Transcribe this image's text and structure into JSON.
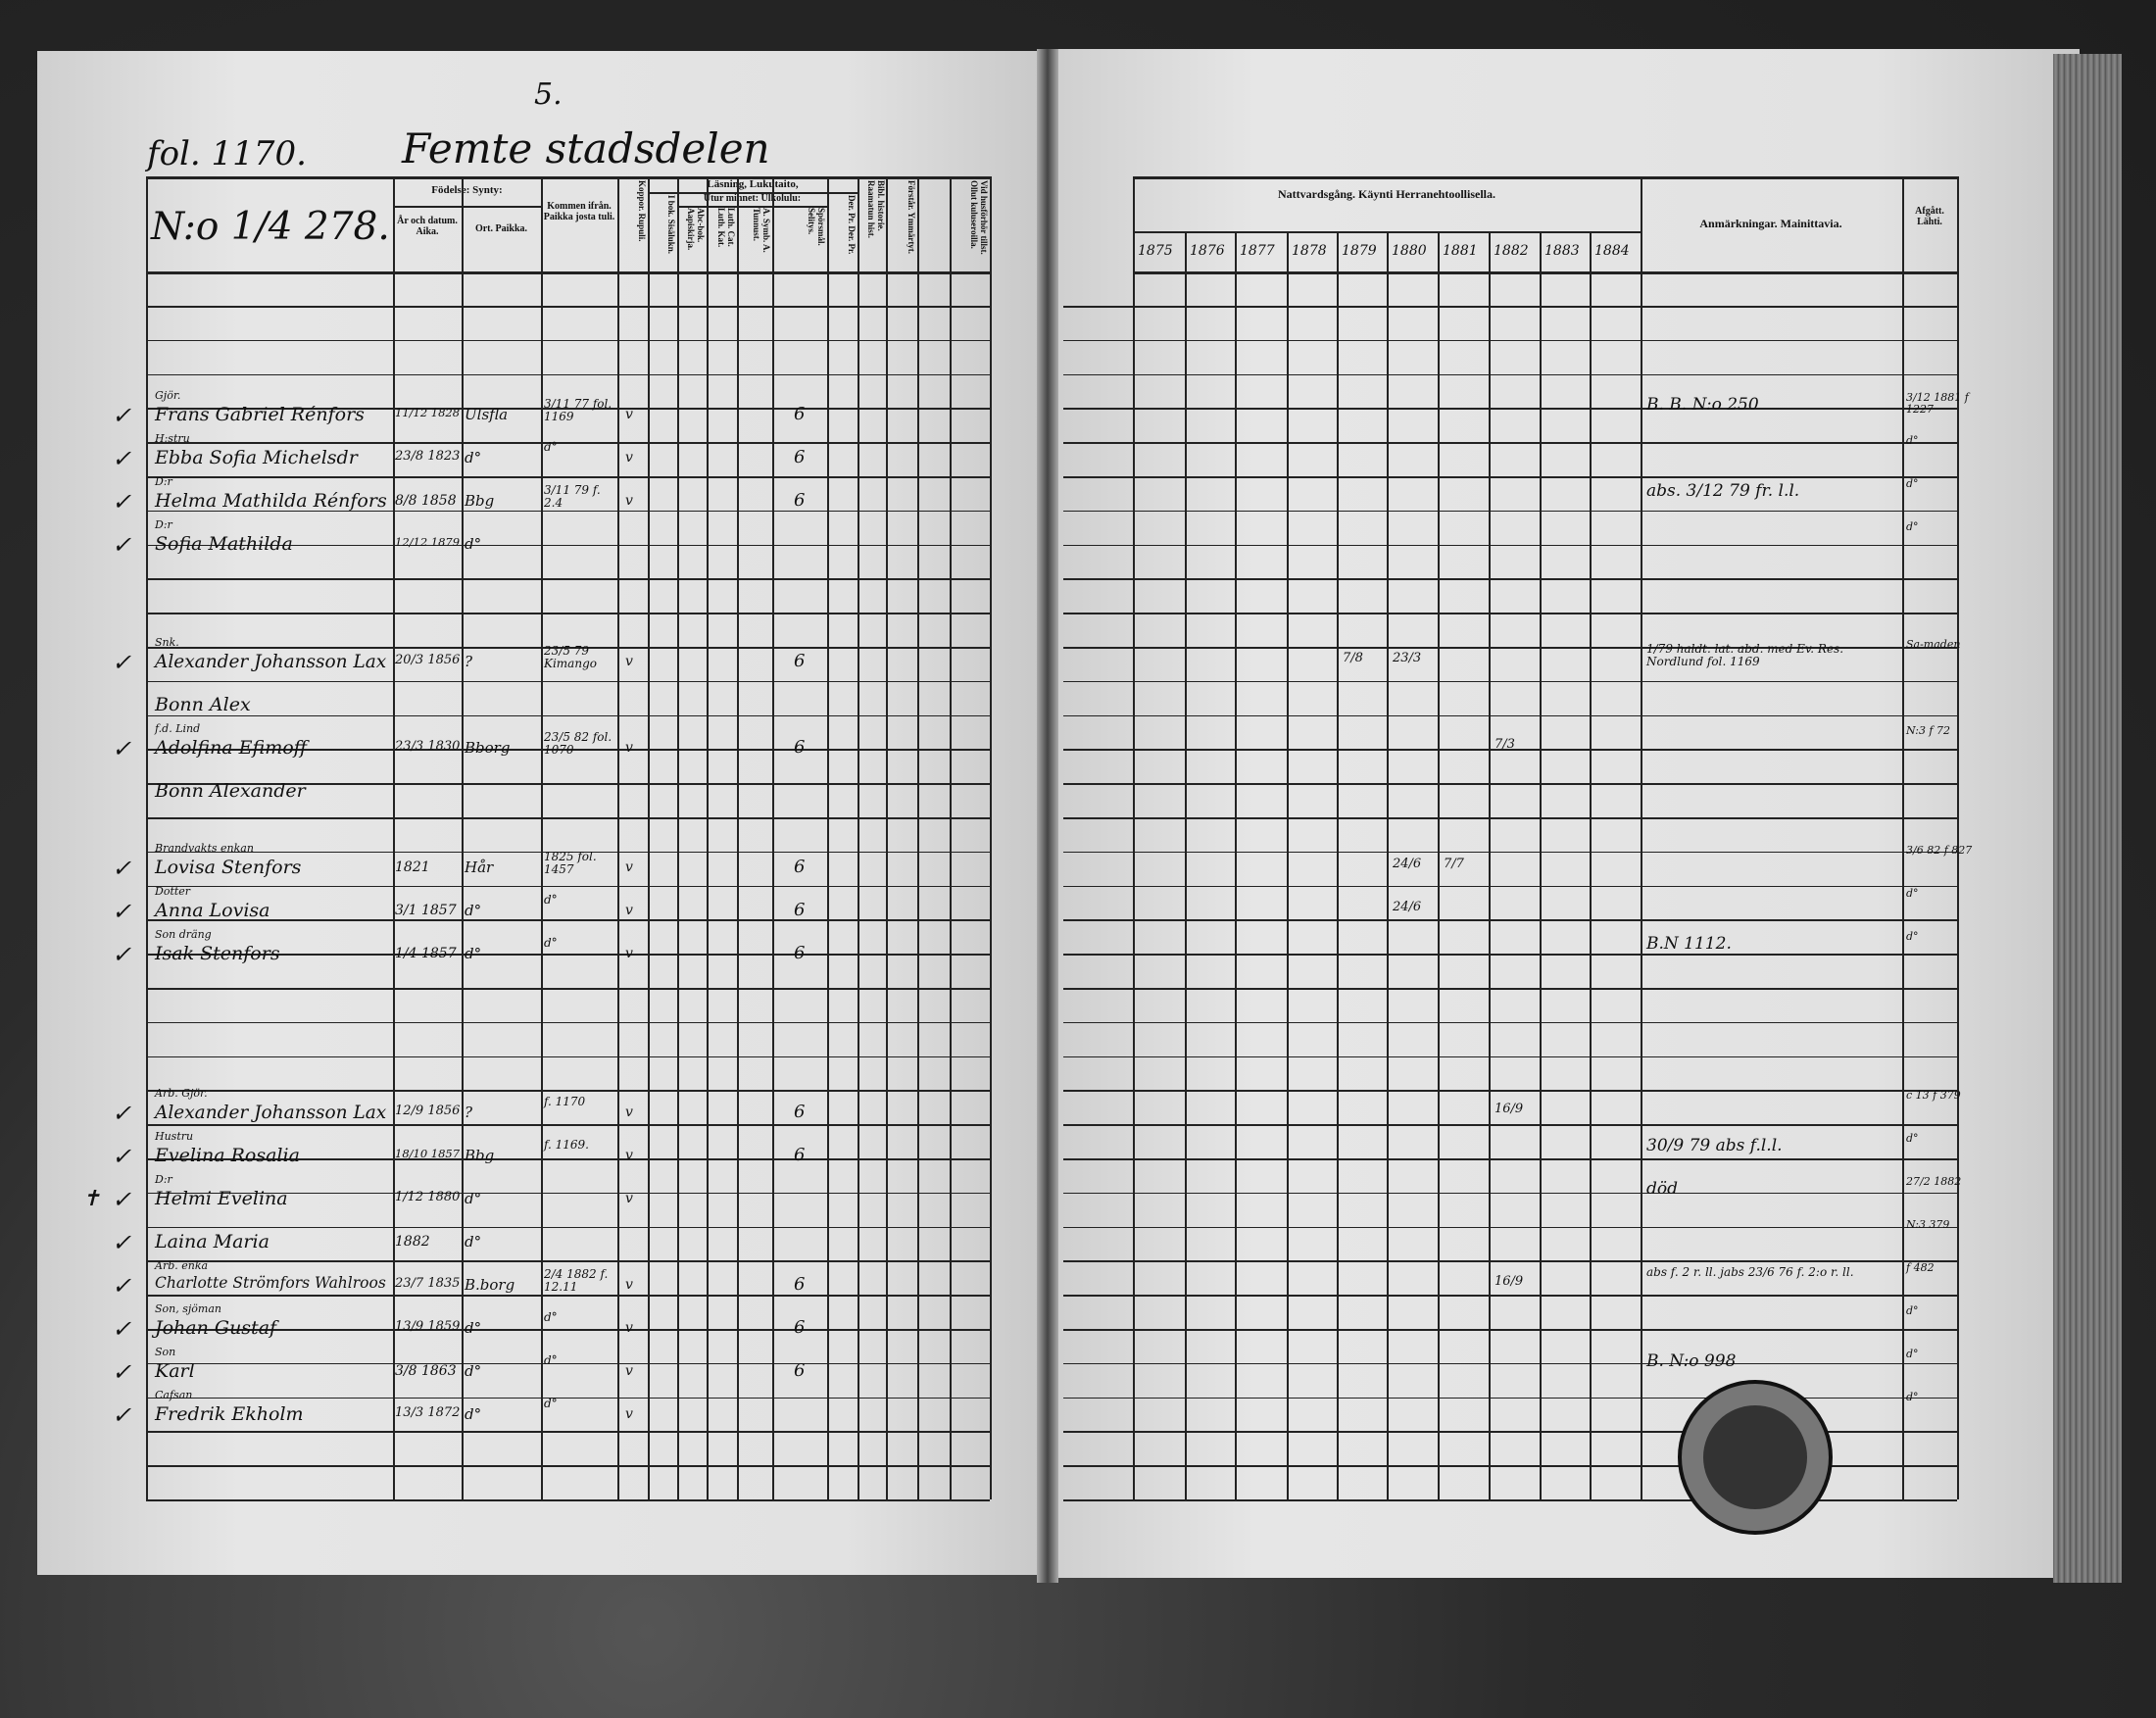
{
  "header": {
    "folio": "fol. 1170.",
    "district": "Femte stadsdelen",
    "district_number": "5.",
    "house_number": "N:o 1/4 278."
  },
  "left_columns": {
    "birth": "Födelse: Synty:",
    "year_date": "År och datum. Aika.",
    "place": "Ort. Paikka.",
    "came_from": "Kommen ifrån. Paikka josta tuli.",
    "smallpox": "Koppor. Rupuli.",
    "reading": "Läsning, Lukutaito,",
    "by_heart": "Utur minnet: Ulkolulu:",
    "in_book": "I bok. Sisälukn.",
    "abc": "Abc-bok. Aapiskirja.",
    "catechism": "Luth. Cat. Luth. Kat.",
    "a_symb": "A. Symb. A. Tunnust.",
    "questions": "Spörsmål. Selitys.",
    "der_pr": "Der. Pr. Der. Pr.",
    "bible_history": "Bibl. historie. Raamatun hist.",
    "confirmed": "Förstår. Ymmärtyt.",
    "vaccinated": "Vid husförhör tillst. Ollut kuluseroilla."
  },
  "right_columns": {
    "communion": "Nattvardsgång. Käynti Herranehtoollisella.",
    "years": [
      "1875",
      "1876",
      "1877",
      "1878",
      "1879",
      "1880",
      "1881",
      "1882",
      "1883",
      "1884"
    ],
    "remarks": "Anmärkningar. Mainittavia.",
    "departed": "Afgått. Lähti."
  },
  "entries": [
    {
      "title": "Gjör.",
      "name": "Frans Gabriel Rénfors",
      "date": "11/12 1828",
      "place": "Ulsfla",
      "from": "3/11 77 fol. 1169",
      "pox": "v",
      "q": "6",
      "comm": [],
      "remark": "B. B. N:o 250",
      "left": "3/12 1881 f 1227"
    },
    {
      "title": "H:stru",
      "name": "Ebba Sofia Michelsdr",
      "date": "23/8 1823",
      "place": "d°",
      "from": "d°",
      "pox": "v",
      "q": "6",
      "comm": [],
      "remark": "",
      "left": "d°"
    },
    {
      "title": "D:r",
      "name": "Helma Mathilda Rénfors",
      "date": "8/8 1858",
      "place": "Bbg",
      "from": "3/11 79 f. 2.4",
      "pox": "v",
      "q": "6",
      "comm": [],
      "remark": "abs. 3/12 79 fr. l.l.",
      "left": "d°"
    },
    {
      "title": "D:r",
      "name": "Sofia Mathilda",
      "date": "12/12 1879",
      "place": "d°",
      "from": "",
      "pox": "",
      "q": "",
      "comm": [],
      "remark": "",
      "left": "d°"
    },
    {
      "title": "Snk.",
      "name": "Alexander Johansson Lax",
      "date": "20/3 1856",
      "place": "?",
      "from": "23/5 79 Kimango",
      "pox": "v",
      "q": "6",
      "comm": [
        [
          "1879",
          "7/8"
        ],
        [
          "1880",
          "23/3"
        ]
      ],
      "remark": "1/79 haldt. lat. abd. med Ev. Res. Nordlund fol. 1169",
      "left": "Sa-maden"
    },
    {
      "title": "",
      "name": "Bonn Alex",
      "date": "",
      "place": "",
      "from": "",
      "pox": "",
      "q": "",
      "comm": [],
      "remark": "",
      "left": ""
    },
    {
      "title": "f.d. Lind",
      "name": "Adolfina Efimoff",
      "date": "23/3 1830",
      "place": "Bborg",
      "from": "23/5 82 fol. 1070",
      "pox": "v",
      "q": "6",
      "comm": [
        [
          "1882",
          "7/3"
        ]
      ],
      "remark": "",
      "left": "N:3 f 72"
    },
    {
      "title": "",
      "name": "Bonn Alexander",
      "date": "",
      "place": "",
      "from": "",
      "pox": "",
      "q": "",
      "comm": [],
      "remark": "",
      "left": ""
    },
    {
      "title": "Brandvakts enkan",
      "name": "Lovisa Stenfors",
      "date": "1821",
      "place": "Hår",
      "from": "1825 fol. 1457",
      "pox": "v",
      "q": "6",
      "comm": [
        [
          "1880",
          "24/6"
        ],
        [
          "1881",
          "7/7"
        ]
      ],
      "remark": "",
      "left": "3/6 82 f 827"
    },
    {
      "title": "Dotter",
      "name": "Anna Lovisa",
      "date": "3/1 1857",
      "place": "d°",
      "from": "d°",
      "pox": "v",
      "q": "6",
      "comm": [
        [
          "1880",
          "24/6"
        ]
      ],
      "remark": "",
      "left": "d°"
    },
    {
      "title": "Son dräng",
      "name": "Isak Stenfors",
      "date": "1/4 1857",
      "place": "d°",
      "from": "d°",
      "pox": "v",
      "q": "6",
      "comm": [],
      "remark": "B.N 1112.",
      "left": "d°"
    },
    {
      "title": "Arb. Gjör.",
      "name": "Alexander Johansson Lax",
      "date": "12/9 1856",
      "place": "?",
      "from": "f. 1170",
      "pox": "v",
      "q": "6",
      "comm": [
        [
          "1882",
          "16/9"
        ]
      ],
      "remark": "",
      "left": "c 13 f 379"
    },
    {
      "title": "Hustru",
      "name": "Evelina Rosalia",
      "date": "18/10 1857",
      "place": "Bbg",
      "from": "f. 1169.",
      "pox": "v",
      "q": "6",
      "comm": [],
      "remark": "30/9 79 abs f.l.l.",
      "left": "d°"
    },
    {
      "title": "D:r",
      "name": "Helmi Evelina",
      "date": "1/12 1880",
      "place": "d°",
      "from": "",
      "pox": "v",
      "q": "",
      "comm": [],
      "remark": "död",
      "left": "27/2 1882"
    },
    {
      "title": "",
      "name": "Laina Maria",
      "date": "1882",
      "place": "d°",
      "from": "",
      "pox": "",
      "q": "",
      "comm": [],
      "remark": "",
      "left": "N:3 379"
    },
    {
      "title": "Arb. enka",
      "name": "Charlotte Strömfors Wahlroos",
      "date": "23/7 1835",
      "place": "B.borg",
      "from": "2/4 1882 f. 12.11",
      "pox": "v",
      "q": "6",
      "comm": [
        [
          "1882",
          "16/9"
        ]
      ],
      "remark": "abs f. 2 r. ll. jabs 23/6 76 f. 2:o r. ll.",
      "left": "f 482"
    },
    {
      "title": "Son, sjöman",
      "name": "Johan Gustaf",
      "date": "13/9 1859",
      "place": "d°",
      "from": "d°",
      "pox": "v",
      "q": "6",
      "comm": [],
      "remark": "",
      "left": "d°"
    },
    {
      "title": "Son",
      "name": "Karl",
      "date": "3/8 1863",
      "place": "d°",
      "from": "d°",
      "pox": "v",
      "q": "6",
      "comm": [],
      "remark": "B. N:o 998",
      "left": "d°"
    },
    {
      "title": "Cafsan",
      "name": "Fredrik Ekholm",
      "date": "13/3 1872",
      "place": "d°",
      "from": "d°",
      "pox": "v",
      "q": "",
      "comm": [],
      "remark": "",
      "left": "d°"
    }
  ],
  "check_mark": "✓",
  "death_mark": "✝",
  "colors": {
    "paper": "#e2e2e2",
    "ink": "#111111",
    "background": "#2a2a2a"
  }
}
